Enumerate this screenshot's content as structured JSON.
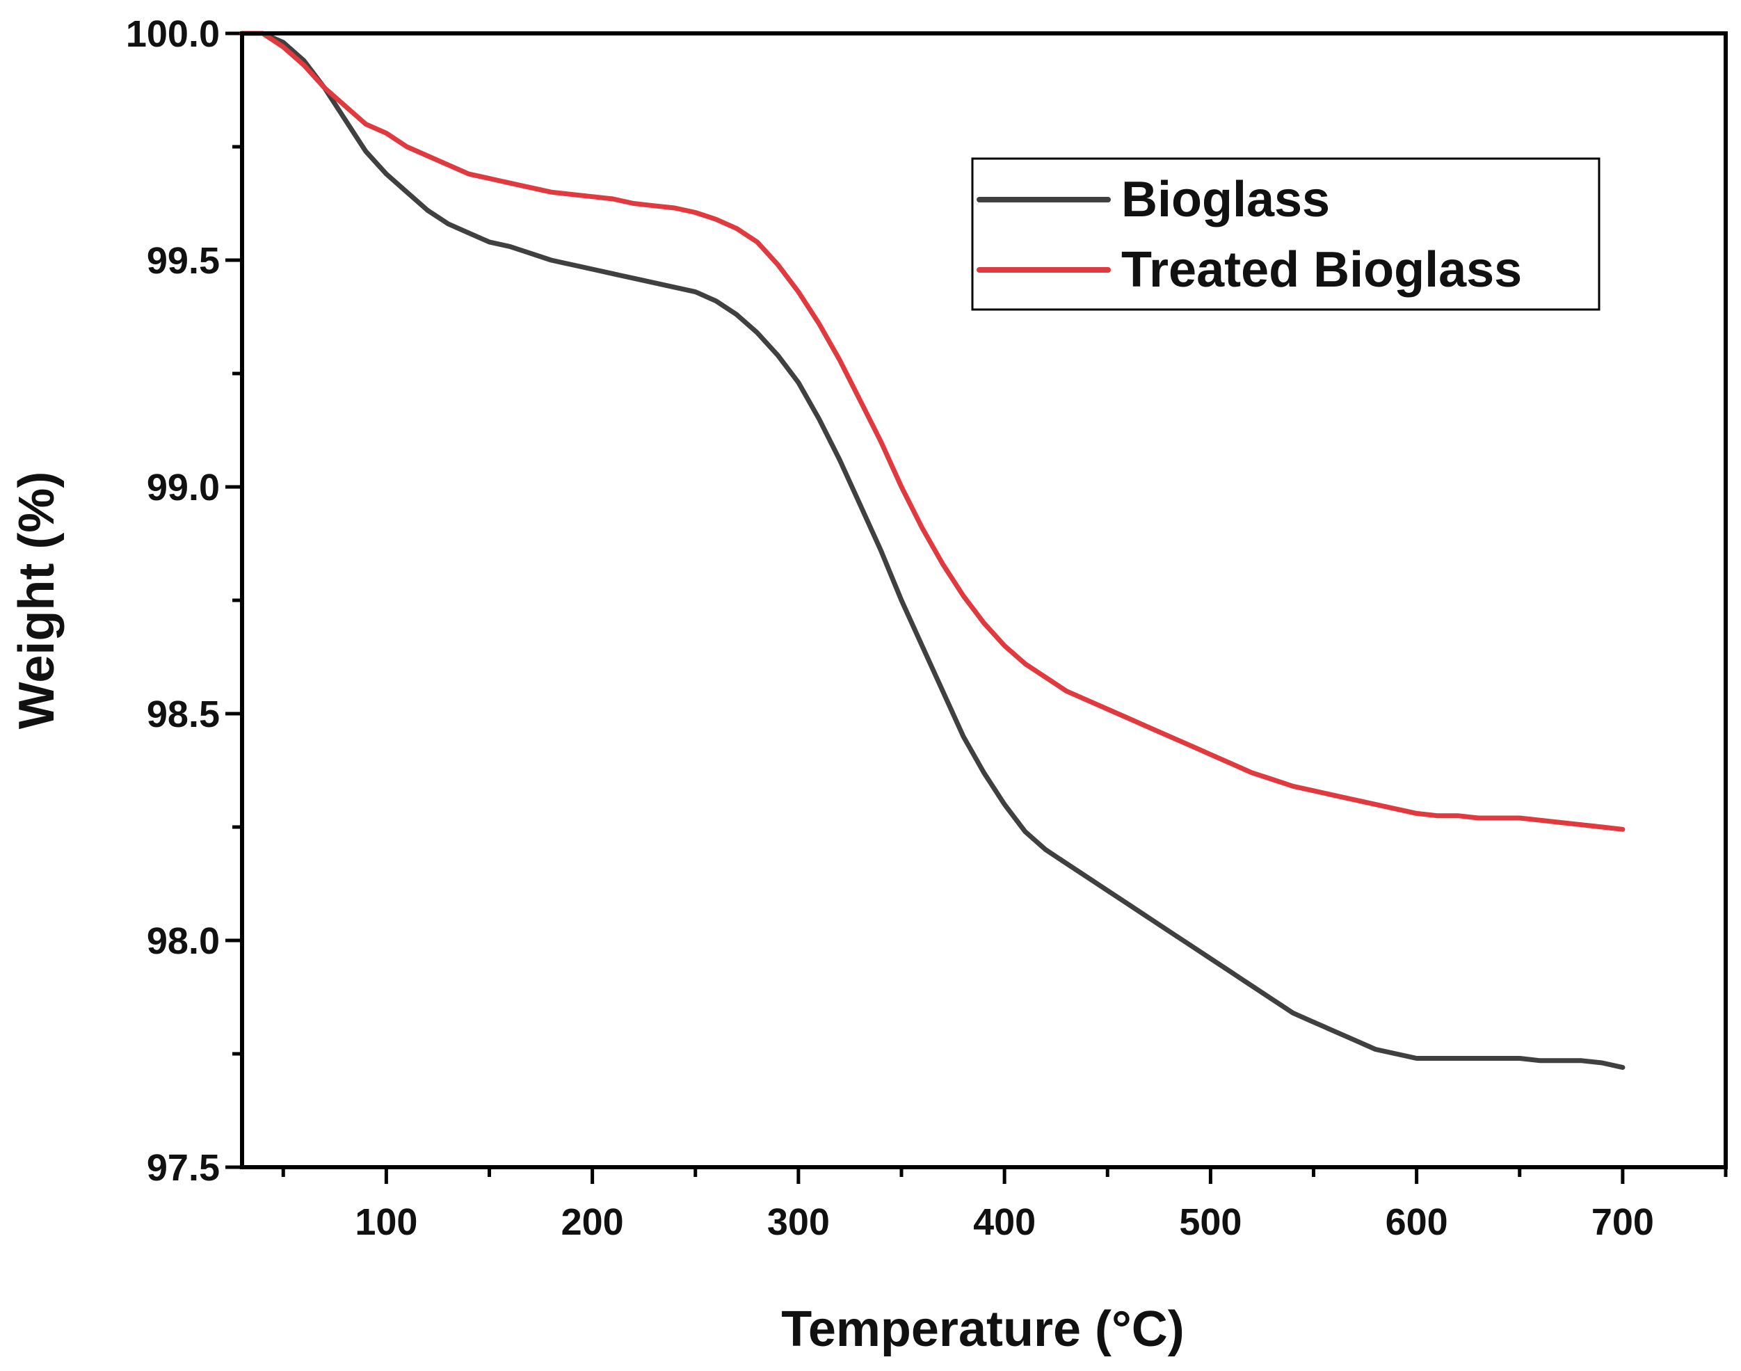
{
  "chart_data": {
    "type": "line",
    "title": "",
    "xlabel": "Temperature",
    "xlabel_unit": "(°C)",
    "ylabel": "Weight (%)",
    "xlim": [
      30,
      750
    ],
    "ylim": [
      97.5,
      100.0
    ],
    "xticks": [
      {
        "value": 100,
        "label": "100"
      },
      {
        "value": 200,
        "label": "200"
      },
      {
        "value": 300,
        "label": "300"
      },
      {
        "value": 400,
        "label": "400"
      },
      {
        "value": 500,
        "label": "500"
      },
      {
        "value": 600,
        "label": "600"
      },
      {
        "value": 700,
        "label": "700"
      }
    ],
    "xminor": [
      50,
      150,
      250,
      350,
      450,
      550,
      650,
      750
    ],
    "yticks": [
      {
        "value": 97.5,
        "label": "97.5"
      },
      {
        "value": 98.0,
        "label": "98.0"
      },
      {
        "value": 98.5,
        "label": "98.5"
      },
      {
        "value": 99.0,
        "label": "99.0"
      },
      {
        "value": 99.5,
        "label": "99.5"
      },
      {
        "value": 100.0,
        "label": "100.0"
      }
    ],
    "yminor": [
      97.75,
      98.25,
      98.75,
      99.25,
      99.75
    ],
    "legend_position": "top-right",
    "series": [
      {
        "name": "Bioglass",
        "color": "#404040",
        "x": [
          30,
          40,
          50,
          60,
          70,
          80,
          90,
          100,
          110,
          120,
          130,
          140,
          150,
          160,
          170,
          180,
          190,
          200,
          210,
          220,
          230,
          240,
          250,
          260,
          270,
          280,
          290,
          300,
          310,
          320,
          330,
          340,
          350,
          360,
          370,
          380,
          390,
          400,
          410,
          420,
          430,
          440,
          450,
          460,
          470,
          480,
          490,
          500,
          510,
          520,
          530,
          540,
          550,
          560,
          570,
          580,
          590,
          600,
          610,
          620,
          630,
          640,
          650,
          660,
          670,
          680,
          690,
          700
        ],
        "values": [
          100.0,
          100.0,
          99.98,
          99.94,
          99.88,
          99.81,
          99.74,
          99.69,
          99.65,
          99.61,
          99.58,
          99.56,
          99.54,
          99.53,
          99.515,
          99.5,
          99.49,
          99.48,
          99.47,
          99.46,
          99.45,
          99.44,
          99.43,
          99.41,
          99.38,
          99.34,
          99.29,
          99.23,
          99.15,
          99.06,
          98.96,
          98.86,
          98.75,
          98.65,
          98.55,
          98.45,
          98.37,
          98.3,
          98.24,
          98.2,
          98.17,
          98.14,
          98.11,
          98.08,
          98.05,
          98.02,
          97.99,
          97.96,
          97.93,
          97.9,
          97.87,
          97.84,
          97.82,
          97.8,
          97.78,
          97.76,
          97.75,
          97.74,
          97.74,
          97.74,
          97.74,
          97.74,
          97.74,
          97.735,
          97.735,
          97.735,
          97.73,
          97.72
        ]
      },
      {
        "name": "Treated Bioglass",
        "color": "#e0393e",
        "x": [
          30,
          40,
          50,
          60,
          70,
          80,
          90,
          100,
          110,
          120,
          130,
          140,
          150,
          160,
          170,
          180,
          190,
          200,
          210,
          220,
          230,
          240,
          250,
          260,
          270,
          280,
          290,
          300,
          310,
          320,
          330,
          340,
          350,
          360,
          370,
          380,
          390,
          400,
          410,
          420,
          430,
          440,
          450,
          460,
          470,
          480,
          490,
          500,
          510,
          520,
          530,
          540,
          550,
          560,
          570,
          580,
          590,
          600,
          610,
          620,
          630,
          640,
          650,
          660,
          670,
          680,
          690,
          700
        ],
        "values": [
          100.0,
          100.0,
          99.97,
          99.93,
          99.88,
          99.84,
          99.8,
          99.78,
          99.75,
          99.73,
          99.71,
          99.69,
          99.68,
          99.67,
          99.66,
          99.65,
          99.645,
          99.64,
          99.635,
          99.625,
          99.62,
          99.615,
          99.605,
          99.59,
          99.57,
          99.54,
          99.49,
          99.43,
          99.36,
          99.28,
          99.19,
          99.1,
          99.0,
          98.91,
          98.83,
          98.76,
          98.7,
          98.65,
          98.61,
          98.58,
          98.55,
          98.53,
          98.51,
          98.49,
          98.47,
          98.45,
          98.43,
          98.41,
          98.39,
          98.37,
          98.355,
          98.34,
          98.33,
          98.32,
          98.31,
          98.3,
          98.29,
          98.28,
          98.275,
          98.275,
          98.27,
          98.27,
          98.27,
          98.265,
          98.26,
          98.255,
          98.25,
          98.245
        ]
      }
    ]
  }
}
